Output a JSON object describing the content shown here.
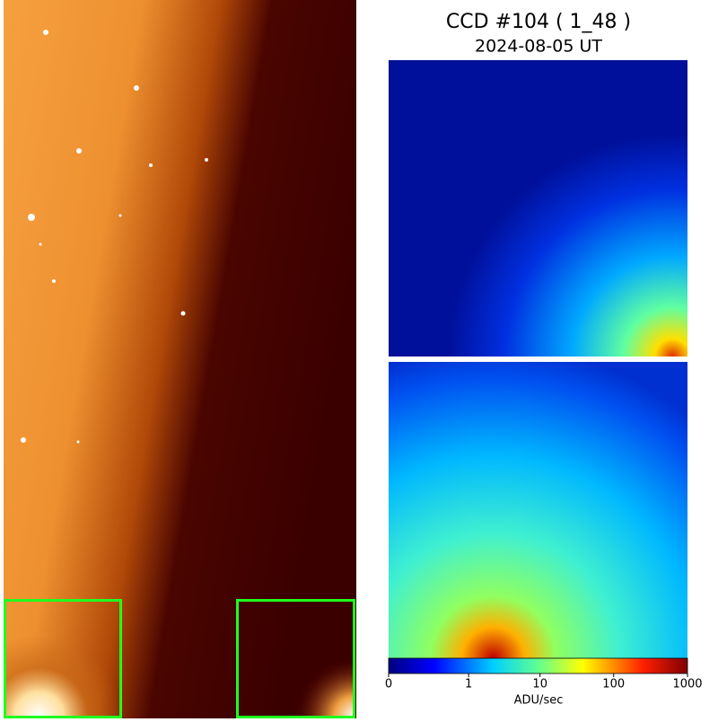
{
  "chart_data": {
    "type": "image",
    "title": "CCD #104 ( 1_48 )",
    "subtitle": "2024-08-05 UT",
    "colorbar": {
      "label": "ADU/sec",
      "scale": "log",
      "lim": [
        0,
        1000
      ],
      "ticks": [
        0,
        1,
        10,
        100,
        1000
      ]
    }
  }
}
